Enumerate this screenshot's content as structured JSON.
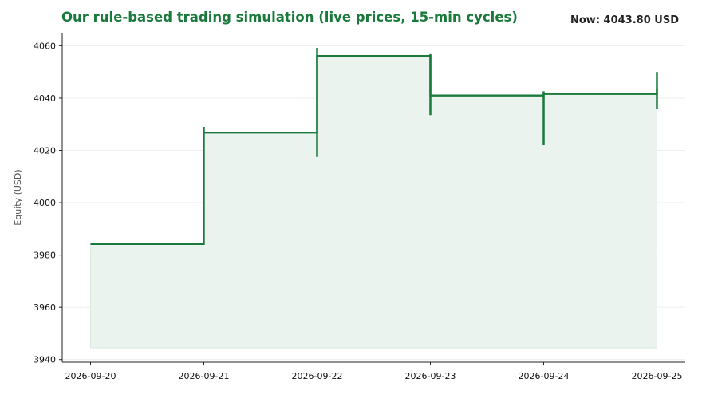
{
  "header": {
    "title": "Our rule-based trading simulation (live prices, 15-min cycles)",
    "now_label": "Now: 4043.80 USD"
  },
  "colors": {
    "line": "#1a7a3c",
    "fill": "#eaf3ee",
    "grid": "#eeeeee",
    "axis": "#222222"
  },
  "chart_data": {
    "type": "line",
    "step": true,
    "title": "Our rule-based trading simulation (live prices, 15-min cycles)",
    "ylabel": "Equity (USD)",
    "xlabel": "",
    "ylim": [
      3939,
      4065
    ],
    "xlim": [
      "2026-09-19T18:00",
      "2026-09-25T06:00"
    ],
    "yticks": [
      3940,
      3960,
      3980,
      4000,
      4020,
      4040,
      4060
    ],
    "xticks": [
      "2026-09-20",
      "2026-09-21",
      "2026-09-22",
      "2026-09-23",
      "2026-09-24",
      "2026-09-25"
    ],
    "grid": "horizontal",
    "fill_baseline": 3944.5,
    "series": [
      {
        "x": [
          "2026-09-20",
          "2026-09-21",
          "2026-09-22",
          "2026-09-23",
          "2026-09-24",
          "2026-09-25"
        ],
        "y": [
          3984.2,
          4026.8,
          4056.1,
          4041.0,
          4041.6,
          4043.8
        ],
        "range_low": [
          3984.2,
          4026.8,
          4017.5,
          4033.5,
          4022.0,
          4036.0
        ],
        "range_high": [
          3984.2,
          4029.0,
          4059.2,
          4056.8,
          4042.6,
          4050.0
        ]
      }
    ]
  }
}
